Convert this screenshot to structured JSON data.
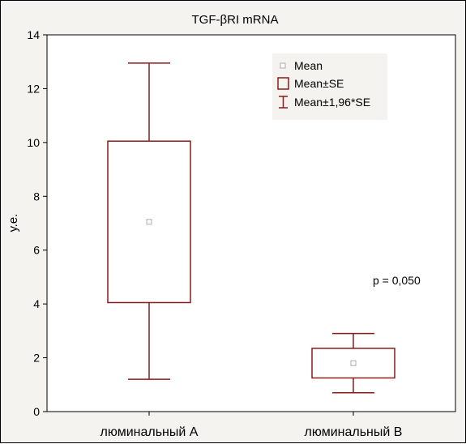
{
  "chart_data": {
    "type": "box",
    "title": "TGF-βRI mRNA",
    "ylabel": "у.е.",
    "xlabel": "",
    "ylim": [
      0,
      14
    ],
    "yticks": [
      0,
      2,
      4,
      6,
      8,
      10,
      12,
      14
    ],
    "categories": [
      "люминальный А",
      "люминальный В"
    ],
    "boxes": [
      {
        "category": "люминальный А",
        "mean": 7.05,
        "se_low": 4.05,
        "se_high": 10.05,
        "ci_low": 1.2,
        "ci_high": 12.95
      },
      {
        "category": "люминальный В",
        "mean": 1.8,
        "se_low": 1.25,
        "se_high": 2.35,
        "ci_low": 0.7,
        "ci_high": 2.9
      }
    ],
    "legend": {
      "placement": "top-right",
      "entries": [
        "Mean",
        "Mean±SE",
        "Mean±1,96*SE"
      ]
    },
    "annotations": [
      "p = 0,050"
    ],
    "grid": false,
    "colors": {
      "box": "#8b1a1a",
      "mean_marker": "#b0a8a8",
      "plot_bg": "#ffffff",
      "page_bg": "#f4f3f0"
    }
  }
}
